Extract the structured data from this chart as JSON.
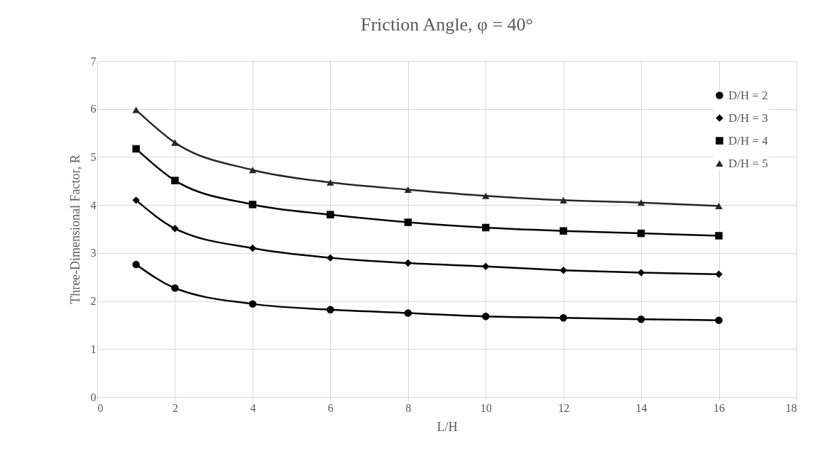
{
  "chart_data": {
    "type": "line",
    "title": "Friction Angle, φ = 40°",
    "xlabel": "L/H",
    "ylabel": "Three-Dimensional Factor, R",
    "x": [
      1,
      2,
      4,
      6,
      8,
      10,
      12,
      14,
      16
    ],
    "series": [
      {
        "name": "D/H = 2",
        "color": "#000000",
        "marker": "circle",
        "values": [
          2.76,
          2.27,
          1.94,
          1.82,
          1.75,
          1.68,
          1.65,
          1.62,
          1.6
        ]
      },
      {
        "name": "D/H = 3",
        "color": "#000000",
        "marker": "diamond",
        "values": [
          4.1,
          3.51,
          3.1,
          2.9,
          2.79,
          2.72,
          2.64,
          2.59,
          2.56
        ]
      },
      {
        "name": "D/H = 4",
        "color": "#000000",
        "marker": "square",
        "values": [
          5.17,
          4.51,
          4.01,
          3.8,
          3.64,
          3.53,
          3.46,
          3.41,
          3.36
        ]
      },
      {
        "name": "D/H = 5",
        "color": "#262626",
        "marker": "triangle",
        "values": [
          5.98,
          5.3,
          4.73,
          4.47,
          4.32,
          4.19,
          4.1,
          4.05,
          3.98
        ]
      }
    ],
    "xlim": [
      0,
      18
    ],
    "xticks": [
      0,
      2,
      4,
      6,
      8,
      10,
      12,
      14,
      16,
      18
    ],
    "ylim": [
      0,
      7
    ],
    "yticks": [
      0,
      1,
      2,
      3,
      4,
      5,
      6,
      7
    ],
    "grid": true,
    "legend": "top right",
    "line_style": "solid"
  }
}
